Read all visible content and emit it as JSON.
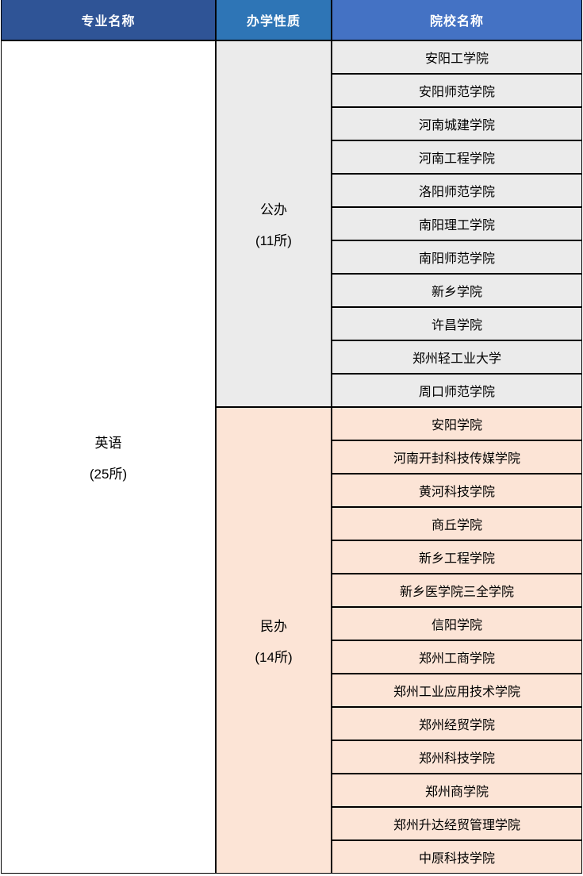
{
  "table": {
    "columns": [
      {
        "label": "专业名称",
        "bg": "#2F5496"
      },
      {
        "label": "办学性质",
        "bg": "#2E75B6"
      },
      {
        "label": "院校名称",
        "bg": "#4472C4"
      }
    ],
    "major": {
      "name": "英语",
      "count": "(25所)"
    },
    "sections": [
      {
        "type": "公办",
        "count": "(11所)",
        "bg": "#EBEBEB",
        "schools": [
          "安阳工学院",
          "安阳师范学院",
          "河南城建学院",
          "河南工程学院",
          "洛阳师范学院",
          "南阳理工学院",
          "南阳师范学院",
          "新乡学院",
          "许昌学院",
          "郑州轻工业大学",
          "周口师范学院"
        ]
      },
      {
        "type": "民办",
        "count": "(14所)",
        "bg": "#FCE4D6",
        "schools": [
          "安阳学院",
          "河南开封科技传媒学院",
          "黄河科技学院",
          "商丘学院",
          "新乡工程学院",
          "新乡医学院三全学院",
          "信阳学院",
          "郑州工商学院",
          "郑州工业应用技术学院",
          "郑州经贸学院",
          "郑州科技学院",
          "郑州商学院",
          "郑州升达经贸管理学院",
          "中原科技学院"
        ]
      }
    ],
    "colors": {
      "border": "#000000",
      "header_text": "#FFFFFF",
      "body_text": "#000000",
      "major_bg": "#FFFFFF"
    }
  }
}
